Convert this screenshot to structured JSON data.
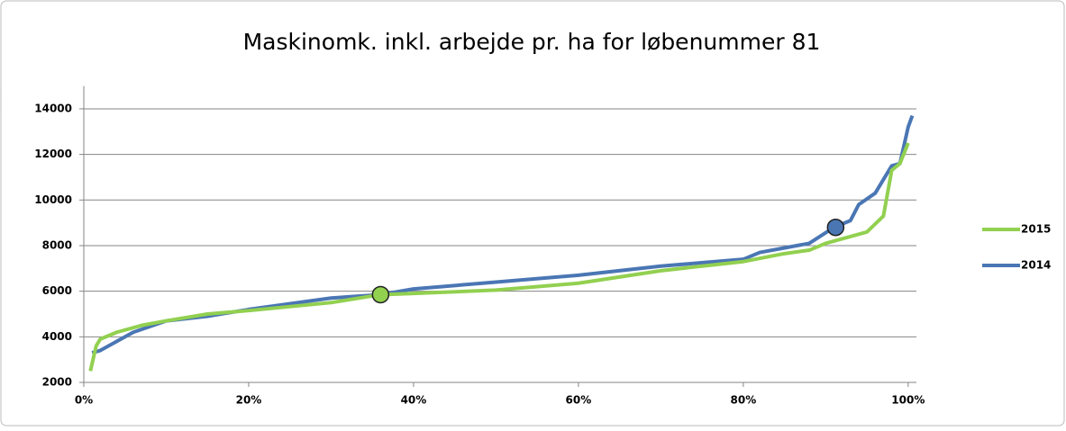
{
  "chart_data": {
    "type": "line",
    "title": "Maskinomk. inkl. arbejde pr. ha for løbenummer 81",
    "xlim": [
      0,
      101
    ],
    "xticks": [
      {
        "value": 0,
        "label": "0%"
      },
      {
        "value": 20,
        "label": "20%"
      },
      {
        "value": 40,
        "label": "40%"
      },
      {
        "value": 60,
        "label": "60%"
      },
      {
        "value": 80,
        "label": "80%"
      },
      {
        "value": 100,
        "label": "100%"
      }
    ],
    "ylim": [
      2000,
      15000
    ],
    "yticks": [
      2000,
      4000,
      6000,
      8000,
      10000,
      12000,
      14000
    ],
    "grid": true,
    "legend": "right",
    "series": [
      {
        "name": "2015",
        "color": "#92d050",
        "x": [
          0.8,
          1.5,
          2,
          4,
          7,
          10,
          15,
          20,
          30,
          36,
          40,
          50,
          60,
          70,
          80,
          85,
          88,
          90,
          95,
          97,
          98,
          99,
          100
        ],
        "values": [
          2500,
          3600,
          3900,
          4200,
          4500,
          4700,
          5000,
          5150,
          5500,
          5850,
          5900,
          6050,
          6350,
          6900,
          7300,
          7650,
          7800,
          8100,
          8600,
          9300,
          11300,
          11600,
          12500
        ],
        "marker": {
          "x": 36,
          "y": 5850
        }
      },
      {
        "name": "2014",
        "color": "#4a76b4",
        "x": [
          1,
          2,
          4,
          6,
          10,
          15,
          20,
          30,
          36,
          40,
          50,
          60,
          70,
          80,
          82,
          85,
          88,
          91,
          93,
          94,
          96,
          98,
          99,
          100,
          100.5
        ],
        "values": [
          3300,
          3400,
          3800,
          4200,
          4700,
          4900,
          5200,
          5700,
          5850,
          6100,
          6400,
          6700,
          7100,
          7400,
          7700,
          7900,
          8100,
          8800,
          9100,
          9800,
          10300,
          11500,
          11600,
          13200,
          13700
        ],
        "marker": {
          "x": 91.2,
          "y": 8800
        }
      }
    ]
  }
}
